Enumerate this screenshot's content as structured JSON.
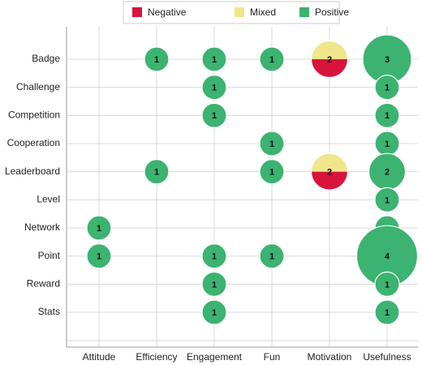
{
  "chart_data": {
    "type": "bubble",
    "x_categories": [
      "Attitude",
      "Efficiency",
      "Engagement",
      "Fun",
      "Motivation",
      "Usefulness"
    ],
    "y_categories": [
      "Badge",
      "Challenge",
      "Competition",
      "Cooperation",
      "Leaderboard",
      "Level",
      "Network",
      "Point",
      "Reward",
      "Stats"
    ],
    "totals": [
      [
        null,
        1,
        1,
        1,
        2,
        3
      ],
      [
        null,
        null,
        1,
        null,
        null,
        1
      ],
      [
        null,
        null,
        1,
        null,
        null,
        1
      ],
      [
        null,
        null,
        null,
        1,
        null,
        1
      ],
      [
        null,
        1,
        null,
        1,
        2,
        2
      ],
      [
        null,
        null,
        null,
        null,
        null,
        1
      ],
      [
        1,
        null,
        null,
        null,
        null,
        1
      ],
      [
        1,
        null,
        1,
        1,
        null,
        4
      ],
      [
        null,
        null,
        1,
        null,
        null,
        1
      ],
      [
        null,
        null,
        1,
        null,
        null,
        1
      ]
    ],
    "series": [
      {
        "name": "Negative",
        "color": "#d7143c",
        "values": [
          [
            null,
            null,
            null,
            null,
            1,
            null
          ],
          [
            null,
            null,
            null,
            null,
            null,
            null
          ],
          [
            null,
            null,
            null,
            null,
            null,
            null
          ],
          [
            null,
            null,
            null,
            null,
            null,
            null
          ],
          [
            null,
            null,
            null,
            null,
            1,
            null
          ],
          [
            null,
            null,
            null,
            null,
            null,
            null
          ],
          [
            null,
            null,
            null,
            null,
            null,
            null
          ],
          [
            null,
            null,
            null,
            null,
            null,
            null
          ],
          [
            null,
            null,
            null,
            null,
            null,
            null
          ],
          [
            null,
            null,
            null,
            null,
            null,
            null
          ]
        ]
      },
      {
        "name": "Mixed",
        "color": "#f0e68c",
        "values": [
          [
            null,
            null,
            null,
            null,
            1,
            null
          ],
          [
            null,
            null,
            null,
            null,
            null,
            null
          ],
          [
            null,
            null,
            null,
            null,
            null,
            null
          ],
          [
            null,
            null,
            null,
            null,
            null,
            null
          ],
          [
            null,
            null,
            null,
            null,
            1,
            null
          ],
          [
            null,
            null,
            null,
            null,
            null,
            null
          ],
          [
            null,
            null,
            null,
            null,
            null,
            null
          ],
          [
            null,
            null,
            null,
            null,
            null,
            null
          ],
          [
            null,
            null,
            null,
            null,
            null,
            null
          ],
          [
            null,
            null,
            null,
            null,
            null,
            null
          ]
        ]
      },
      {
        "name": "Positive",
        "color": "#3cb371",
        "values": [
          [
            null,
            1,
            1,
            1,
            null,
            3
          ],
          [
            null,
            null,
            1,
            null,
            null,
            1
          ],
          [
            null,
            null,
            1,
            null,
            null,
            1
          ],
          [
            null,
            null,
            null,
            1,
            null,
            1
          ],
          [
            null,
            1,
            null,
            1,
            null,
            2
          ],
          [
            null,
            null,
            null,
            null,
            null,
            1
          ],
          [
            1,
            null,
            null,
            null,
            null,
            1
          ],
          [
            1,
            null,
            1,
            1,
            null,
            4
          ],
          [
            null,
            null,
            1,
            null,
            null,
            1
          ],
          [
            null,
            null,
            1,
            null,
            null,
            1
          ]
        ]
      }
    ],
    "grid": true
  }
}
